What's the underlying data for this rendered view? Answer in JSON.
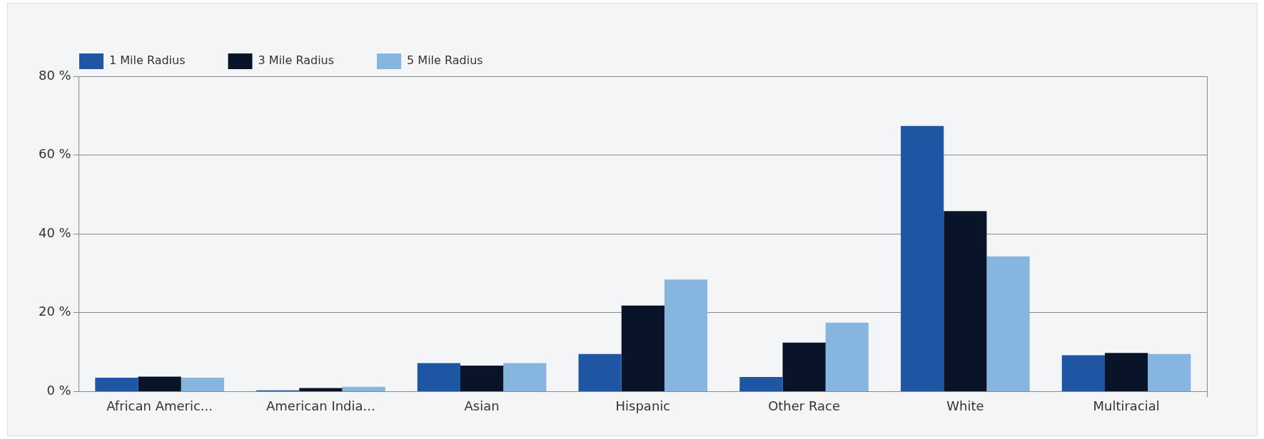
{
  "chart_data": {
    "type": "bar",
    "categories": [
      "African Americ...",
      "American India...",
      "Asian",
      "Hispanic",
      "Other Race",
      "White",
      "Multiracial"
    ],
    "series": [
      {
        "name": "1 Mile Radius",
        "color": "#1f56a3",
        "values": [
          3.5,
          0.3,
          7.2,
          9.5,
          3.7,
          67.4,
          9.2
        ]
      },
      {
        "name": "3 Mile Radius",
        "color": "#0a1428",
        "values": [
          3.8,
          0.9,
          6.6,
          21.8,
          12.4,
          45.8,
          9.8
        ]
      },
      {
        "name": "5 Mile Radius",
        "color": "#86b6e0",
        "values": [
          3.5,
          1.2,
          7.2,
          28.4,
          17.5,
          34.3,
          9.5
        ]
      }
    ],
    "ylim": [
      0,
      80
    ],
    "yticks": [
      {
        "value": 0,
        "label": "0 %"
      },
      {
        "value": 20,
        "label": "20 %"
      },
      {
        "value": 40,
        "label": "40 %"
      },
      {
        "value": 60,
        "label": "60 %"
      },
      {
        "value": 80,
        "label": "80 %"
      }
    ],
    "grid": "y",
    "legend": "top left"
  }
}
